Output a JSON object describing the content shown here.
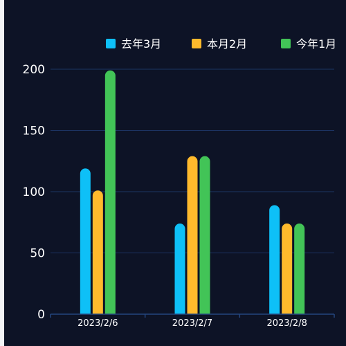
{
  "chart_data": {
    "type": "bar",
    "categories": [
      "2023/2/6",
      "2023/2/7",
      "2023/2/8"
    ],
    "series": [
      {
        "name": "去年3月",
        "values": [
          119,
          74,
          89
        ],
        "color": "#0ec0f7"
      },
      {
        "name": "本月2月",
        "values": [
          101,
          129,
          74
        ],
        "color": "#ffba2c"
      },
      {
        "name": "今年1月",
        "values": [
          199,
          129,
          74
        ],
        "color": "#42c457"
      }
    ],
    "y_ticks": [
      0,
      50,
      100,
      150,
      200
    ],
    "ylim": [
      0,
      200
    ],
    "grid": true,
    "legend": "top-right",
    "colors": {
      "background": "#0d1326",
      "grid": "#1c3463",
      "axis": "#24467f",
      "text": "#ffffff"
    }
  }
}
